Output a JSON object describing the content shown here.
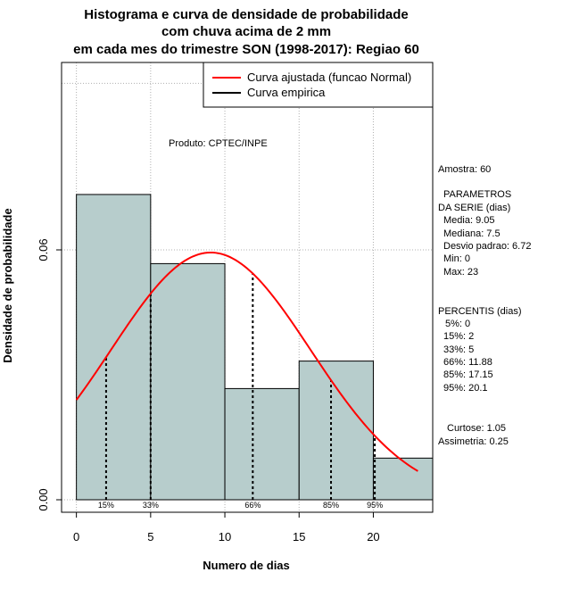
{
  "chart_data": {
    "type": "bar",
    "title_lines": [
      "Histograma e curva de densidade de probabilidade",
      "com chuva acima de 2 mm",
      "em cada mes do trimestre SON (1998-2017): Regiao 60"
    ],
    "xlabel": "Numero de dias",
    "ylabel": "Densidade de probabilidade",
    "xlim": [
      -1,
      24
    ],
    "ylim": [
      -0.003,
      0.105
    ],
    "x_ticks": [
      0,
      5,
      10,
      15,
      20
    ],
    "y_ticks": [
      0.0,
      0.06
    ],
    "y_tick_labels": [
      "0.00",
      "0.06"
    ],
    "x_grid": [
      0,
      5,
      10,
      15,
      20
    ],
    "y_grid": [
      0.0,
      0.06,
      0.1
    ],
    "bins": [
      {
        "from": 0,
        "to": 5,
        "density": 0.0733
      },
      {
        "from": 5,
        "to": 10,
        "density": 0.0567
      },
      {
        "from": 10,
        "to": 15,
        "density": 0.0267
      },
      {
        "from": 15,
        "to": 20,
        "density": 0.0333
      },
      {
        "from": 20,
        "to": 24,
        "density": 0.01
      }
    ],
    "normal_fit": {
      "mean": 9.05,
      "sd": 6.72,
      "x_from": 0,
      "x_to": 23
    },
    "percentile_lines": [
      {
        "label": "15%",
        "x": 2
      },
      {
        "label": "33%",
        "x": 5
      },
      {
        "label": "66%",
        "x": 11.88
      },
      {
        "label": "85%",
        "x": 17.15
      },
      {
        "label": "95%",
        "x": 20.1
      }
    ],
    "legend": [
      {
        "label": "Curva ajustada (funcao Normal)",
        "color": "#ff0000"
      },
      {
        "label": "Curva empirica",
        "color": "#000000"
      }
    ],
    "legend_position": "top-right",
    "product_label": "Produto: CPTEC/INPE",
    "colors": {
      "bar_fill": "#b7cdcc",
      "curve": "#ff0000",
      "grid": "#b0b0b0"
    }
  },
  "stats_panel": {
    "sample": "Amostra: 60",
    "params_title_1": "PARAMETROS",
    "params_title_2": "DA SERIE (dias)",
    "media": "Media: 9.05",
    "mediana": "Mediana: 7.5",
    "desvio": "Desvio padrao: 6.72",
    "min": "Min: 0",
    "max": "Max: 23",
    "percentis_title": "PERCENTIS (dias)",
    "p5": "5%: 0",
    "p15": "15%: 2",
    "p33": "33%: 5",
    "p66": "66%: 11.88",
    "p85": "85%: 17.15",
    "p95": "95%: 20.1",
    "curtose": "Curtose: 1.05",
    "assimetria": "Assimetria: 0.25"
  }
}
